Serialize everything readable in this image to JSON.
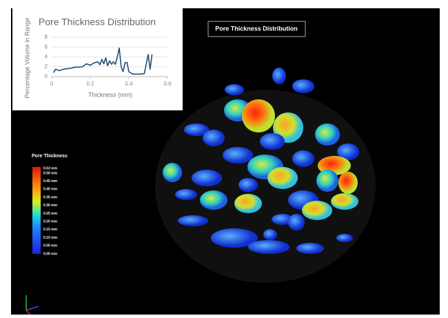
{
  "chart_data": {
    "type": "line",
    "title": "Pore Thickness Distribution",
    "x_label": "Thickness (mm)",
    "y_label": "Percentage Volume in Range",
    "x": [
      0.01,
      0.02,
      0.04,
      0.06,
      0.08,
      0.1,
      0.12,
      0.14,
      0.16,
      0.18,
      0.2,
      0.22,
      0.24,
      0.25,
      0.26,
      0.27,
      0.28,
      0.29,
      0.3,
      0.31,
      0.32,
      0.33,
      0.34,
      0.35,
      0.36,
      0.37,
      0.38,
      0.39,
      0.4,
      0.42,
      0.44,
      0.46,
      0.48,
      0.5,
      0.51,
      0.52
    ],
    "series": [
      {
        "name": "Pore Thickness",
        "color": "#1f4e79",
        "values": [
          0.8,
          1.5,
          1.2,
          1.5,
          1.6,
          1.7,
          1.9,
          1.9,
          2.0,
          2.6,
          2.3,
          2.8,
          3.0,
          2.4,
          3.5,
          2.6,
          3.8,
          2.2,
          3.2,
          2.5,
          3.0,
          2.5,
          4.0,
          5.8,
          2.0,
          1.0,
          2.8,
          2.9,
          1.0,
          0.5,
          0.5,
          0.5,
          0.6,
          4.5,
          1.5,
          4.5
        ]
      }
    ],
    "xlim": [
      0,
      0.6
    ],
    "xticks": [
      0,
      0.2,
      0.4,
      0.6
    ],
    "ylim": [
      0,
      8
    ],
    "yticks": [
      0,
      2,
      4,
      6,
      8
    ],
    "grid": true
  },
  "viewer": {
    "title": "Pore Thickness Distribution",
    "legend": {
      "title": "Pore Thickness",
      "labels": [
        "0.53 mm",
        "0.50 mm",
        "0.45 mm",
        "0.40 mm",
        "0.35 mm",
        "0.30 mm",
        "0.25 mm",
        "0.20 mm",
        "0.15 mm",
        "0.10 mm",
        "0.05 mm",
        "0.00 mm"
      ]
    }
  }
}
